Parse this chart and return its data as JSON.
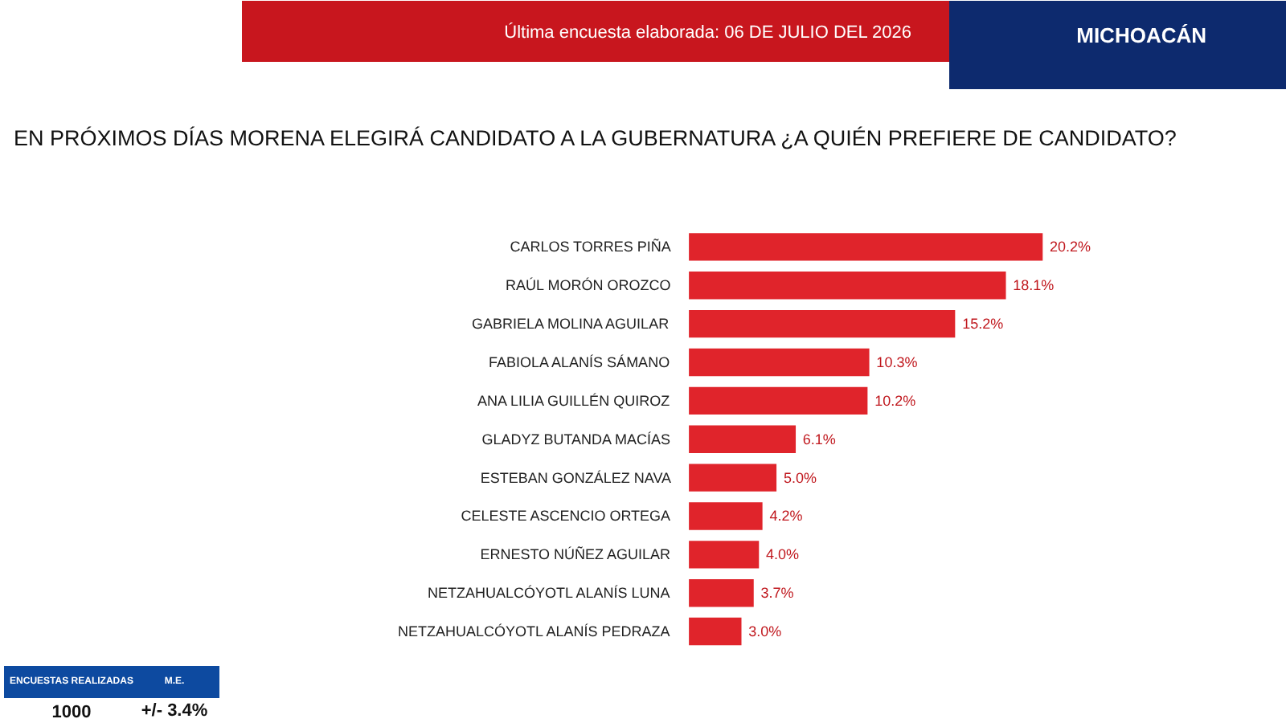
{
  "chart_data": {
    "type": "bar",
    "orientation": "horizontal",
    "title": "EN PRÓXIMOS DÍAS MORENA ELEGIRÁ CANDIDATO A LA GUBERNATURA ¿A QUIÉN PREFIERE DE CANDIDATO?",
    "categories": [
      "CARLOS TORRES PIÑA",
      "RAÚL MORÓN OROZCO",
      "GABRIELA MOLINA AGUILAR",
      "FABIOLA ALANÍS SÁMANO",
      "ANA LILIA GUILLÉN QUIROZ",
      "GLADYZ BUTANDA MACÍAS",
      "ESTEBAN GONZÁLEZ NAVA",
      "CELESTE ASCENCIO ORTEGA",
      "ERNESTO NÚÑEZ AGUILAR",
      "NETZAHUALCÓYOTL ALANÍS LUNA",
      "NETZAHUALCÓYOTL ALANÍS PEDRAZA"
    ],
    "values": [
      20.2,
      18.1,
      15.2,
      10.3,
      10.2,
      6.1,
      5.0,
      4.2,
      4.0,
      3.7,
      3.0
    ],
    "value_labels": [
      "20.2%",
      "18.1%",
      "15.2%",
      "10.3%",
      "10.2%",
      "6.1%",
      "5.0%",
      "4.2%",
      "4.0%",
      "3.7%",
      "3.0%"
    ],
    "color": "#e0242b",
    "annotations": [
      "Última encuesta elaborada: 06 DE JULIO DEL 2026",
      "MICHOACÁN",
      "ENCUESTAS REALIZADAS",
      "M.E.",
      "1000",
      "+/- 3.4%"
    ]
  }
}
